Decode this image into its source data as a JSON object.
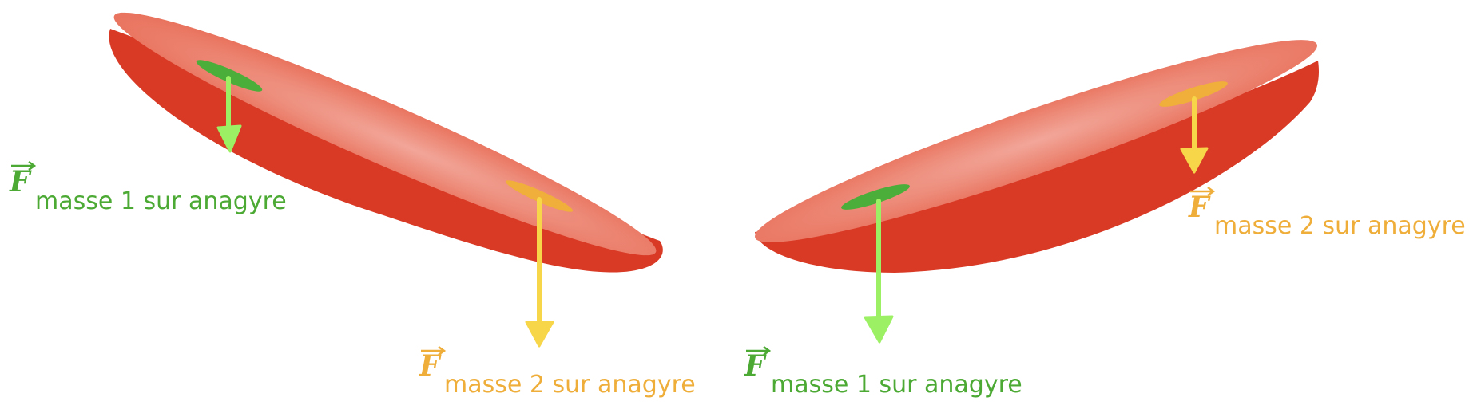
{
  "colors": {
    "body_side": "#d93a26",
    "body_top_outer": "#e8705a",
    "body_top_inner": "#f2a699",
    "mass1": "#4cae3a",
    "mass2": "#f0ae3a",
    "arrow1": "#9cf064",
    "arrow2": "#f7d64a",
    "label1": "#4caa34",
    "label2": "#efae3a"
  },
  "labels": {
    "vector_symbol": "F",
    "left_mass1": "masse 1 sur anagyre",
    "left_mass2": "masse 2 sur anagyre",
    "right_mass1": "masse 1 sur anagyre",
    "right_mass2": "masse 2 sur anagyre"
  }
}
